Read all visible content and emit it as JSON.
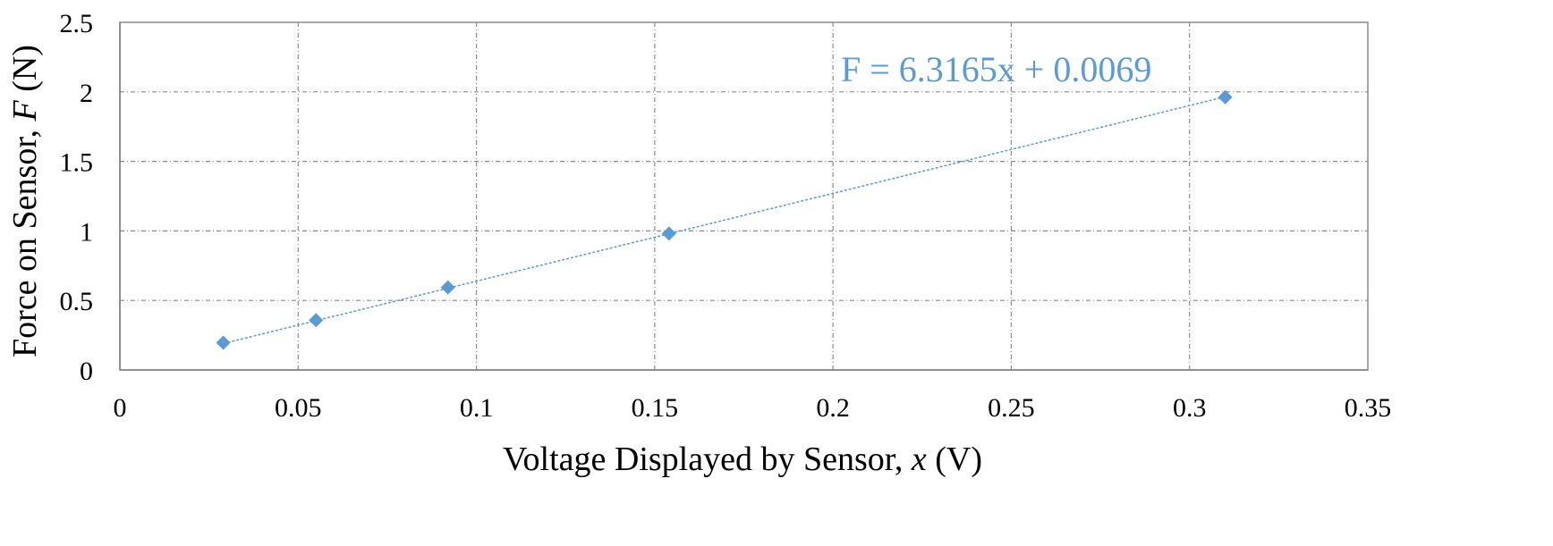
{
  "chart_data": {
    "type": "scatter",
    "title": "",
    "xlabel": "Voltage Displayed by Sensor, x  (V)",
    "xlabel_parts": {
      "pre": "Voltage Displayed by Sensor, ",
      "var": "x",
      "post": "  (V)"
    },
    "ylabel": "Force on Sensor, F (N)",
    "ylabel_parts": {
      "pre": "Force on Sensor, ",
      "var": "F",
      "post": " (N)"
    },
    "xlim": [
      0,
      0.35
    ],
    "ylim": [
      0,
      2.5
    ],
    "xticks": [
      "0",
      "0.05",
      "0.1",
      "0.15",
      "0.2",
      "0.25",
      "0.3",
      "0.35"
    ],
    "yticks": [
      "0",
      "0.5",
      "1",
      "1.5",
      "2",
      "2.5"
    ],
    "grid": true,
    "legend": "none",
    "series": [
      {
        "marker": "diamond",
        "color": "#5B9BD5",
        "points": [
          {
            "x": 0.029,
            "y": 0.196
          },
          {
            "x": 0.055,
            "y": 0.358
          },
          {
            "x": 0.092,
            "y": 0.594
          },
          {
            "x": 0.154,
            "y": 0.981
          },
          {
            "x": 0.31,
            "y": 1.962
          }
        ]
      }
    ],
    "trendline": {
      "type": "linear",
      "slope": 6.3165,
      "intercept": 0.0069,
      "x_range": [
        0.029,
        0.31
      ],
      "style": "dotted",
      "color": "#5B9BD5",
      "equation": "F = 6.3165x + 0.0069"
    }
  }
}
